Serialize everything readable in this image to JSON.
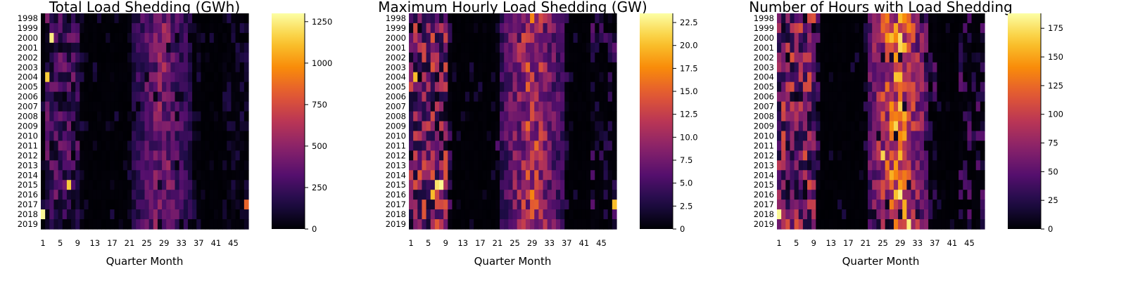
{
  "chart_data": [
    {
      "type": "heatmap",
      "title": "Total Load Shedding (GWh)",
      "xlabel": "Quarter Month",
      "ylabel": "",
      "y_categories": [
        "1998",
        "1999",
        "2000",
        "2001",
        "2002",
        "2003",
        "2004",
        "2005",
        "2006",
        "2007",
        "2008",
        "2009",
        "2010",
        "2011",
        "2012",
        "2013",
        "2014",
        "2015",
        "2016",
        "2017",
        "2018",
        "2019"
      ],
      "x_range": [
        1,
        48
      ],
      "x_ticks": [
        "1",
        "5",
        "9",
        "13",
        "17",
        "21",
        "25",
        "29",
        "33",
        "37",
        "41",
        "45"
      ],
      "colormap": "inferno",
      "clim": [
        0,
        1300
      ],
      "colorbar_ticks": [
        "0",
        "250",
        "500",
        "750",
        "1000",
        "1250"
      ],
      "colorbar_tick_values": [
        0,
        250,
        500,
        750,
        1000,
        1250
      ],
      "profile": {
        "early_peak_months": [
          2,
          9
        ],
        "summer_peak_months": [
          22,
          35
        ],
        "hotspots": [
          {
            "year": "2000",
            "month": 3,
            "value": 1250
          },
          {
            "year": "2004",
            "month": 2,
            "value": 1150
          },
          {
            "year": "2015",
            "month": 7,
            "value": 1150
          },
          {
            "year": "2018",
            "month": 1,
            "value": 1280
          },
          {
            "year": "2017",
            "month": 48,
            "value": 850
          }
        ]
      }
    },
    {
      "type": "heatmap",
      "title": "Maximum Hourly Load Shedding (GW)",
      "xlabel": "Quarter Month",
      "ylabel": "",
      "y_categories": [
        "1998",
        "1999",
        "2000",
        "2001",
        "2002",
        "2003",
        "2004",
        "2005",
        "2006",
        "2007",
        "2008",
        "2009",
        "2010",
        "2011",
        "2012",
        "2013",
        "2014",
        "2015",
        "2016",
        "2017",
        "2018",
        "2019"
      ],
      "x_range": [
        1,
        48
      ],
      "x_ticks": [
        "1",
        "5",
        "9",
        "13",
        "17",
        "21",
        "25",
        "29",
        "33",
        "37",
        "41",
        "45"
      ],
      "colormap": "inferno",
      "clim": [
        0,
        23.5
      ],
      "colorbar_ticks": [
        "0",
        "2.5",
        "5.0",
        "7.5",
        "10.0",
        "12.5",
        "15.0",
        "17.5",
        "20.0",
        "22.5"
      ],
      "colorbar_tick_values": [
        0,
        2.5,
        5.0,
        7.5,
        10.0,
        12.5,
        15.0,
        17.5,
        20.0,
        22.5
      ],
      "profile": {
        "early_peak_months": [
          1,
          9
        ],
        "summer_peak_months": [
          22,
          36
        ],
        "hotspots": [
          {
            "year": "2015",
            "month": 8,
            "value": 23
          },
          {
            "year": "2015",
            "month": 7,
            "value": 22
          },
          {
            "year": "2004",
            "month": 2,
            "value": 20
          },
          {
            "year": "2016",
            "month": 6,
            "value": 20
          },
          {
            "year": "2017",
            "month": 48,
            "value": 20
          }
        ]
      }
    },
    {
      "type": "heatmap",
      "title": "Number of Hours with Load Shedding",
      "xlabel": "Quarter Month",
      "ylabel": "",
      "y_categories": [
        "1998",
        "1999",
        "2000",
        "2001",
        "2002",
        "2003",
        "2004",
        "2005",
        "2006",
        "2007",
        "2008",
        "2009",
        "2010",
        "2011",
        "2012",
        "2013",
        "2014",
        "2015",
        "2016",
        "2017",
        "2018",
        "2019"
      ],
      "x_range": [
        1,
        48
      ],
      "x_ticks": [
        "1",
        "5",
        "9",
        "13",
        "17",
        "21",
        "25",
        "29",
        "33",
        "37",
        "41",
        "45"
      ],
      "colormap": "inferno",
      "clim": [
        0,
        188
      ],
      "colorbar_ticks": [
        "0",
        "25",
        "50",
        "75",
        "100",
        "125",
        "150",
        "175"
      ],
      "colorbar_tick_values": [
        0,
        25,
        50,
        75,
        100,
        125,
        150,
        175
      ],
      "profile": {
        "early_peak_months": [
          1,
          9
        ],
        "summer_peak_months": [
          22,
          35
        ],
        "hotspots": [
          {
            "year": "2018",
            "month": 1,
            "value": 185
          },
          {
            "year": "2019",
            "month": 31,
            "value": 180
          },
          {
            "year": "2000",
            "month": 29,
            "value": 175
          },
          {
            "year": "2012",
            "month": 25,
            "value": 170
          }
        ]
      }
    }
  ]
}
